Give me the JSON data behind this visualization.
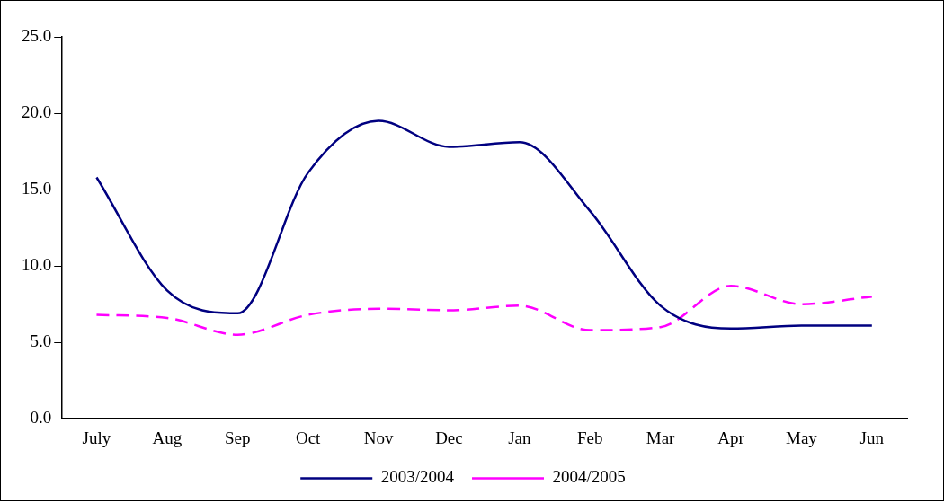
{
  "chart_data": {
    "type": "line",
    "categories": [
      "July",
      "Aug",
      "Sep",
      "Oct",
      "Nov",
      "Dec",
      "Jan",
      "Feb",
      "Mar",
      "Apr",
      "May",
      "Jun"
    ],
    "series": [
      {
        "name": "2003/2004",
        "color": "#000080",
        "line_style": "solid",
        "values": [
          15.8,
          8.4,
          6.9,
          16.1,
          19.5,
          17.8,
          18.1,
          13.6,
          7.4,
          5.9,
          6.1,
          6.1
        ]
      },
      {
        "name": "2004/2005",
        "color": "#ff00ff",
        "line_style": "dashed",
        "values": [
          6.8,
          6.6,
          5.5,
          6.8,
          7.2,
          7.1,
          7.4,
          5.8,
          6.0,
          8.7,
          7.5,
          8.0
        ]
      }
    ],
    "ylim": [
      0,
      25
    ],
    "yticks": [
      {
        "value": 0,
        "label": "0.0"
      },
      {
        "value": 5,
        "label": "5.0"
      },
      {
        "value": 10,
        "label": "10.0"
      },
      {
        "value": 15,
        "label": "15.0"
      },
      {
        "value": 20,
        "label": "20.0"
      },
      {
        "value": 25,
        "label": "25.0"
      }
    ],
    "grid": false,
    "legend": "bottom",
    "marker": "none"
  }
}
